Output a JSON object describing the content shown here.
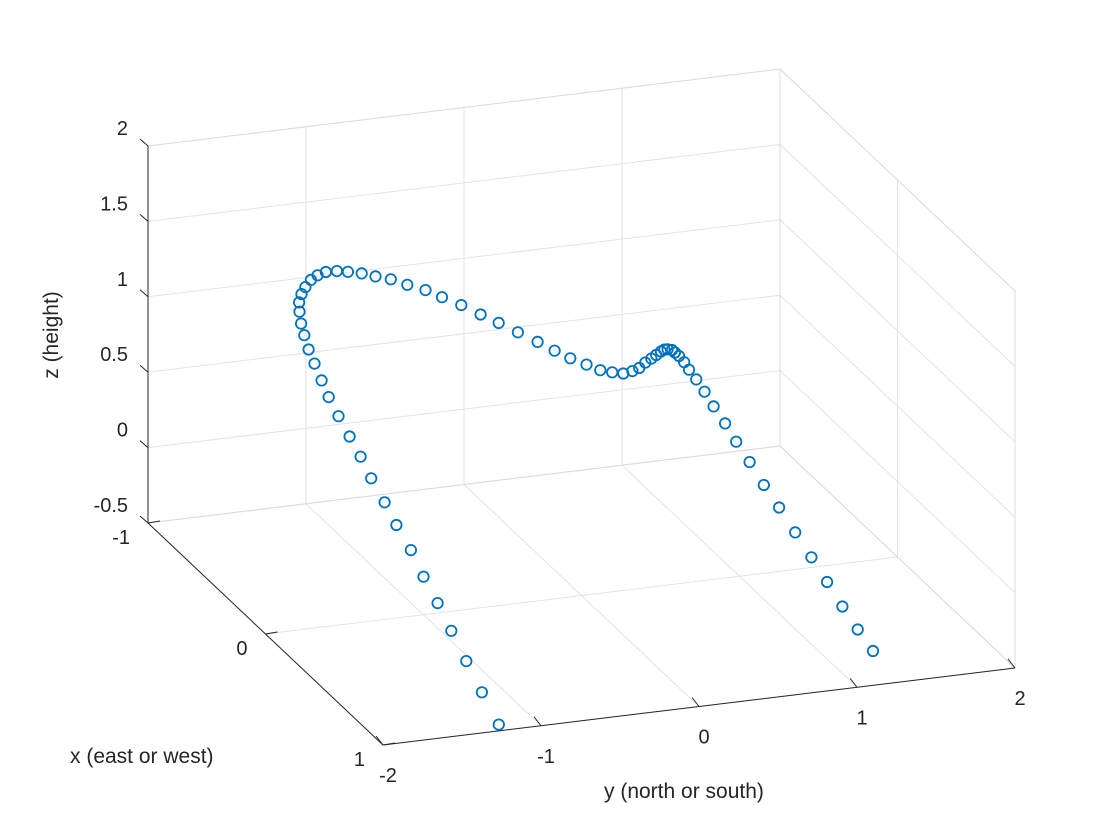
{
  "chart_data": {
    "type": "scatter3d",
    "title": "",
    "xlabel": "x (east or west)",
    "ylabel": "y (north or south)",
    "zlabel": "z (height)",
    "xlim": [
      -1,
      1
    ],
    "ylim": [
      -2,
      2
    ],
    "zlim": [
      -0.5,
      2
    ],
    "xticks": [
      "-1",
      "0",
      "1"
    ],
    "yticks": [
      "-2",
      "-1",
      "0",
      "1",
      "2"
    ],
    "zticks": [
      "-0.5",
      "0",
      "0.5",
      "1",
      "1.5",
      "2"
    ],
    "grid": true,
    "box": true,
    "marker": "circle-open",
    "marker_color": "#0072BD",
    "series": [
      {
        "x": [
          0.95,
          0.82,
          0.7,
          0.6,
          0.51,
          0.43,
          0.35,
          0.28,
          0.22,
          0.16,
          0.11,
          0.07,
          0.03,
          0.0,
          -0.02,
          -0.04,
          -0.05,
          -0.06,
          -0.06,
          -0.06,
          -0.05,
          -0.03,
          -0.01,
          0.01,
          0.04,
          0.07,
          0.11,
          0.15,
          0.2,
          0.25,
          0.3,
          0.36,
          0.42,
          0.48,
          0.55,
          0.62,
          0.68,
          0.75,
          0.81,
          0.86,
          0.9,
          0.93,
          0.94,
          0.92,
          0.88,
          0.81,
          0.72,
          0.61,
          0.5,
          0.38,
          0.26,
          0.14,
          0.02,
          -0.09,
          -0.2,
          -0.3,
          -0.39,
          -0.47,
          -0.53,
          -0.58,
          -0.61,
          -0.62,
          -0.62,
          -0.6,
          -0.56,
          -0.51,
          -0.44,
          -0.37,
          -0.29,
          -0.2,
          -0.11,
          -0.02
        ],
        "y": [
          -1.23,
          -1.24,
          -1.25,
          -1.27,
          -1.29,
          -1.32,
          -1.34,
          -1.38,
          -1.41,
          -1.45,
          -1.48,
          -1.52,
          -1.56,
          -1.6,
          -1.63,
          -1.66,
          -1.69,
          -1.71,
          -1.73,
          -1.74,
          -1.75,
          -1.75,
          -1.74,
          -1.72,
          -1.7,
          -1.67,
          -1.63,
          -1.59,
          -1.54,
          -1.49,
          -1.43,
          -1.37,
          -1.3,
          -1.24,
          -1.17,
          -1.1,
          -1.03,
          -0.96,
          -0.88,
          -0.81,
          -0.74,
          -0.66,
          -0.58,
          -0.49,
          -0.39,
          -0.28,
          -0.17,
          -0.05,
          0.07,
          0.19,
          0.31,
          0.42,
          0.53,
          0.64,
          0.74,
          0.84,
          0.94,
          1.03,
          1.12,
          1.21,
          1.29,
          1.37,
          1.44,
          1.51,
          1.57,
          1.63,
          1.68,
          1.73,
          1.77,
          1.8,
          1.83,
          1.86
        ],
        "z": [
          -0.5,
          -0.38,
          -0.26,
          -0.13,
          -0.01,
          0.11,
          0.23,
          0.35,
          0.46,
          0.58,
          0.69,
          0.8,
          0.91,
          1.02,
          1.12,
          1.22,
          1.31,
          1.4,
          1.48,
          1.56,
          1.63,
          1.7,
          1.76,
          1.82,
          1.87,
          1.91,
          1.94,
          1.96,
          1.98,
          1.99,
          2.0,
          2.0,
          2.0,
          1.99,
          1.98,
          1.96,
          1.94,
          1.92,
          1.89,
          1.86,
          1.83,
          1.8,
          1.76,
          1.72,
          1.67,
          1.62,
          1.56,
          1.5,
          1.43,
          1.35,
          1.27,
          1.18,
          1.08,
          0.98,
          0.87,
          0.76,
          0.64,
          0.52,
          0.4,
          0.27,
          0.14,
          0.01,
          -0.12,
          -0.25,
          -0.38,
          -0.5,
          -0.62,
          -0.74,
          -0.85,
          -0.95,
          -1.04,
          -1.12
        ]
      }
    ]
  }
}
